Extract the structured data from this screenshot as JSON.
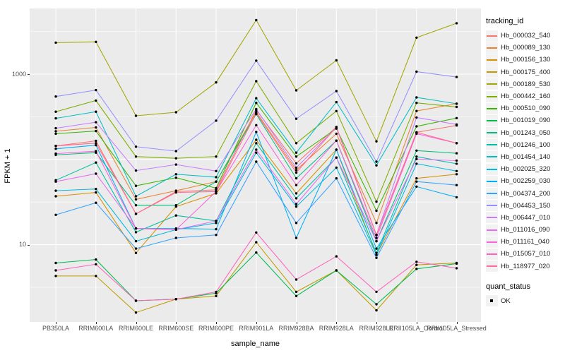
{
  "chart_data": {
    "type": "line",
    "xlabel": "sample_name",
    "ylabel": "FPKM + 1",
    "y_scale": "log10",
    "ylim": [
      1.25,
      5600
    ],
    "y_ticks": [
      {
        "label": "1000",
        "value": 1000
      },
      {
        "label": "10",
        "value": 10
      }
    ],
    "grid": {
      "major_values": [
        10,
        100,
        1000
      ],
      "minor_values": [
        3.162,
        31.62,
        316.2,
        3162
      ],
      "color": "#FFFFFF",
      "panel_bg": "#EBEBEB"
    },
    "legend_position": "right",
    "point_marker": {
      "shape": "filled-circle",
      "color": "#000000"
    },
    "categories": [
      "PB350LA",
      "RRIM600LA",
      "RRIM600LE",
      "RRIM600SE",
      "RRIM600PE",
      "RRIM901LA",
      "RRIM928BA",
      "RRIM928LA",
      "RRIM928LE",
      "RRII105LA_Control",
      "RRII105LA_Stressed"
    ],
    "series": [
      {
        "name": "Hb_000032_540",
        "color": "#F8766D",
        "values": [
          144,
          165,
          23,
          42,
          44,
          380,
          90,
          240,
          13,
          208,
          250
        ]
      },
      {
        "name": "Hb_000089_130",
        "color": "#EA8331",
        "values": [
          214,
          237,
          34,
          43,
          55,
          360,
          75,
          200,
          18,
          370,
          450
        ]
      },
      {
        "name": "Hb_000156_130",
        "color": "#D89000",
        "values": [
          37,
          41,
          8,
          28,
          40,
          170,
          40,
          130,
          7.6,
          60,
          67
        ]
      },
      {
        "name": "Hb_000175_400",
        "color": "#C09B00",
        "values": [
          4.3,
          4.3,
          1.6,
          2.3,
          2.5,
          10.7,
          2.8,
          5.0,
          1.7,
          5.8,
          6.1
        ]
      },
      {
        "name": "Hb_000189_530",
        "color": "#A3A500",
        "values": [
          2340,
          2390,
          325,
          357,
          800,
          4300,
          645,
          1450,
          163,
          2680,
          3950
        ]
      },
      {
        "name": "Hb_000442_160",
        "color": "#7CAE00",
        "values": [
          363,
          490,
          108,
          103,
          108,
          826,
          155,
          369,
          32,
          460,
          412
        ]
      },
      {
        "name": "Hb_000510_090",
        "color": "#39B600",
        "values": [
          200,
          215,
          49,
          61,
          46,
          460,
          108,
          230,
          25,
          244,
          305
        ]
      },
      {
        "name": "Hb_001019_090",
        "color": "#00BB4E",
        "values": [
          6.1,
          6.7,
          2.2,
          2.3,
          2.7,
          8.1,
          2.5,
          5.0,
          2.0,
          5.2,
          6.0
        ]
      },
      {
        "name": "Hb_001243_050",
        "color": "#00BF7D",
        "values": [
          113,
          120,
          29,
          29,
          55,
          340,
          60,
          166,
          11,
          127,
          118
        ]
      },
      {
        "name": "Hb_001246_100",
        "color": "#00C1A3",
        "values": [
          57,
          92,
          14,
          22,
          19,
          155,
          35,
          105,
          8,
          108,
          89
        ]
      },
      {
        "name": "Hb_001454_140",
        "color": "#00BFC4",
        "values": [
          303,
          363,
          37,
          67,
          62,
          522,
          120,
          470,
          85,
          533,
          450
        ]
      },
      {
        "name": "Hb_002025_320",
        "color": "#00BAE0",
        "values": [
          43,
          45,
          11,
          15,
          18,
          120,
          28,
          80,
          7.6,
          89,
          73
        ]
      },
      {
        "name": "Hb_002259_030",
        "color": "#00B0F6",
        "values": [
          133,
          147,
          15.5,
          15.5,
          15.2,
          210,
          12,
          130,
          9,
          48,
          36
        ]
      },
      {
        "name": "Hb_004374_200",
        "color": "#35A2FF",
        "values": [
          22.4,
          31,
          9,
          12,
          13,
          94,
          18,
          60,
          7,
          55,
          50
        ]
      },
      {
        "name": "Hb_004453_150",
        "color": "#9590FF",
        "values": [
          546,
          650,
          141,
          125,
          285,
          1440,
          300,
          633,
          94,
          1070,
          925
        ]
      },
      {
        "name": "Hb_006447_010",
        "color": "#C77CFF",
        "values": [
          232,
          273,
          74,
          87,
          73,
          390,
          80,
          236,
          13,
          310,
          257
        ]
      },
      {
        "name": "Hb_011016_090",
        "color": "#E76BF3",
        "values": [
          55,
          68,
          15.5,
          15,
          19,
          130,
          30,
          105,
          11,
          101,
          97
        ]
      },
      {
        "name": "Hb_011161_040",
        "color": "#FA62DB",
        "values": [
          117,
          125,
          15.5,
          15,
          42,
          252,
          50,
          166,
          12,
          200,
          155
        ]
      },
      {
        "name": "Hb_015057_010",
        "color": "#FF62BC",
        "values": [
          5.0,
          5.9,
          2.2,
          2.3,
          2.8,
          13.9,
          3.9,
          7.3,
          2.8,
          6.3,
          5.3
        ]
      },
      {
        "name": "Hb_118977_020",
        "color": "#FF6A98",
        "values": [
          144,
          155,
          23,
          41,
          42,
          350,
          70,
          240,
          13,
          208,
          155
        ]
      }
    ]
  },
  "legend": {
    "tracking_title": "tracking_id",
    "quant_title": "quant_status",
    "quant_items": [
      {
        "label": "OK",
        "marker": "black-point"
      }
    ]
  },
  "colors": {
    "panel_bg": "#EBEBEB",
    "gridline": "#FFFFFF",
    "point": "#000000",
    "axis_text": "#4D4D4D",
    "legend_key_bg": "#F2F2F2"
  }
}
